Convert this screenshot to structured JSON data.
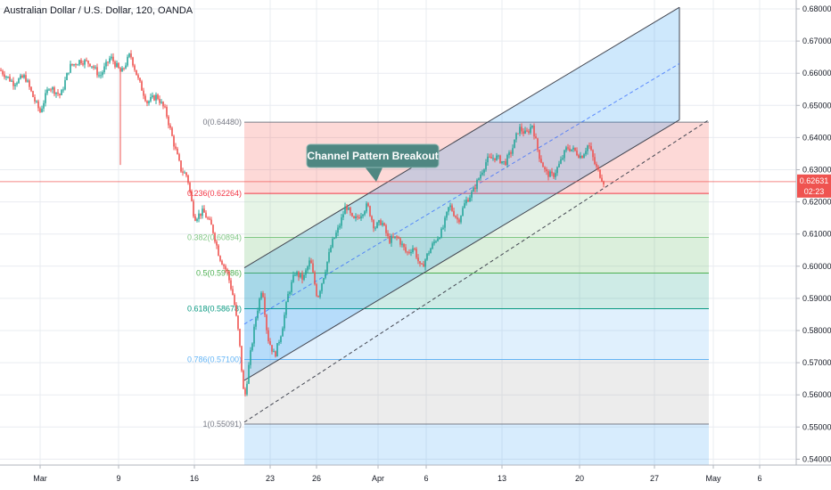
{
  "header": {
    "title": "Australian Dollar / U.S. Dollar, 120, OANDA"
  },
  "annotation": {
    "callout": "Channel Pattern Breakout"
  },
  "price_axis": {
    "labels": [
      "0.68000",
      "0.67000",
      "0.66000",
      "0.65000",
      "0.64000",
      "0.63000",
      "0.62000",
      "0.61000",
      "0.60000",
      "0.59000",
      "0.58000",
      "0.57000",
      "0.56000",
      "0.55000",
      "0.54000"
    ],
    "current_price": "0.62631",
    "countdown": "02:23"
  },
  "time_axis": {
    "labels": [
      "Mar",
      "9",
      "16",
      "23",
      "26",
      "Apr",
      "6",
      "13",
      "20",
      "27",
      "May",
      "6"
    ]
  },
  "colors": {
    "up_candle": "#26a69a",
    "down_candle": "#ef5350",
    "price_line": "#ef5350",
    "channel_fill": "#2196f3",
    "grid": "#e9ecf1"
  },
  "chart_data": {
    "type": "candlestick",
    "title": "Australian Dollar / U.S. Dollar, 120, OANDA",
    "ylim": [
      0.54,
      0.68
    ],
    "x_ticks": [
      "Mar",
      "9",
      "16",
      "23",
      "26",
      "Apr",
      "6",
      "13",
      "20",
      "27",
      "May",
      "6"
    ],
    "current_price": 0.62631,
    "fibonacci": {
      "levels": [
        {
          "ratio": 0,
          "price": 0.6448,
          "label": "0(0.64480)",
          "color": "#787b86",
          "fill": "#f44336"
        },
        {
          "ratio": 0.236,
          "price": 0.62264,
          "label": "0.236(0.62264)",
          "color": "#f23645",
          "fill": "#81c784"
        },
        {
          "ratio": 0.382,
          "price": 0.60894,
          "label": "0.382(0.60894)",
          "color": "#81c784",
          "fill": "#4caf50"
        },
        {
          "ratio": 0.5,
          "price": 0.59786,
          "label": "0.5(0.59786)",
          "color": "#4caf50",
          "fill": "#089981"
        },
        {
          "ratio": 0.618,
          "price": 0.58678,
          "label": "0.618(0.58678)",
          "color": "#089981",
          "fill": "#64b5f6"
        },
        {
          "ratio": 0.786,
          "price": 0.571,
          "label": "0.786(0.57100)",
          "color": "#64b5f6",
          "fill": "#a0a0a0"
        },
        {
          "ratio": 1,
          "price": 0.55091,
          "label": "1(0.55091)",
          "color": "#787b86",
          "fill": null
        }
      ]
    },
    "channel": {
      "upper_line": {
        "x1": 274,
        "p1": 0.5995,
        "x2": 762,
        "p2": 0.6805
      },
      "lower_line": {
        "x1": 274,
        "p1": 0.5645,
        "x2": 762,
        "p2": 0.6455
      },
      "mid_dashed": {
        "x1": 274,
        "p1": 0.582,
        "x2": 762,
        "p2": 0.663
      },
      "outer_dashed": {
        "x1": 274,
        "p1": 0.5515,
        "x2": 795,
        "p2": 0.6455
      }
    },
    "price_path": [
      {
        "x": 0,
        "p": 0.661
      },
      {
        "x": 15,
        "p": 0.657
      },
      {
        "x": 28,
        "p": 0.659
      },
      {
        "x": 38,
        "p": 0.652
      },
      {
        "x": 45,
        "p": 0.648
      },
      {
        "x": 55,
        "p": 0.656
      },
      {
        "x": 68,
        "p": 0.653
      },
      {
        "x": 78,
        "p": 0.662
      },
      {
        "x": 90,
        "p": 0.664
      },
      {
        "x": 102,
        "p": 0.663
      },
      {
        "x": 112,
        "p": 0.659
      },
      {
        "x": 124,
        "p": 0.665
      },
      {
        "x": 136,
        "p": 0.66
      },
      {
        "x": 146,
        "p": 0.666
      },
      {
        "x": 155,
        "p": 0.658
      },
      {
        "x": 165,
        "p": 0.651
      },
      {
        "x": 176,
        "p": 0.653
      },
      {
        "x": 186,
        "p": 0.648
      },
      {
        "x": 195,
        "p": 0.638
      },
      {
        "x": 203,
        "p": 0.63
      },
      {
        "x": 210,
        "p": 0.628
      },
      {
        "x": 218,
        "p": 0.615
      },
      {
        "x": 228,
        "p": 0.617
      },
      {
        "x": 238,
        "p": 0.612
      },
      {
        "x": 246,
        "p": 0.603
      },
      {
        "x": 255,
        "p": 0.598
      },
      {
        "x": 262,
        "p": 0.59
      },
      {
        "x": 268,
        "p": 0.578
      },
      {
        "x": 274,
        "p": 0.558
      },
      {
        "x": 280,
        "p": 0.571
      },
      {
        "x": 287,
        "p": 0.584
      },
      {
        "x": 294,
        "p": 0.594
      },
      {
        "x": 300,
        "p": 0.578
      },
      {
        "x": 308,
        "p": 0.572
      },
      {
        "x": 316,
        "p": 0.58
      },
      {
        "x": 323,
        "p": 0.591
      },
      {
        "x": 331,
        "p": 0.598
      },
      {
        "x": 340,
        "p": 0.596
      },
      {
        "x": 348,
        "p": 0.602
      },
      {
        "x": 356,
        "p": 0.59
      },
      {
        "x": 364,
        "p": 0.598
      },
      {
        "x": 372,
        "p": 0.607
      },
      {
        "x": 380,
        "p": 0.612
      },
      {
        "x": 388,
        "p": 0.619
      },
      {
        "x": 396,
        "p": 0.614
      },
      {
        "x": 404,
        "p": 0.616
      },
      {
        "x": 412,
        "p": 0.619
      },
      {
        "x": 420,
        "p": 0.612
      },
      {
        "x": 428,
        "p": 0.614
      },
      {
        "x": 436,
        "p": 0.608
      },
      {
        "x": 446,
        "p": 0.609
      },
      {
        "x": 456,
        "p": 0.604
      },
      {
        "x": 464,
        "p": 0.606
      },
      {
        "x": 472,
        "p": 0.599
      },
      {
        "x": 480,
        "p": 0.604
      },
      {
        "x": 488,
        "p": 0.608
      },
      {
        "x": 496,
        "p": 0.611
      },
      {
        "x": 504,
        "p": 0.619
      },
      {
        "x": 514,
        "p": 0.614
      },
      {
        "x": 522,
        "p": 0.62
      },
      {
        "x": 530,
        "p": 0.623
      },
      {
        "x": 538,
        "p": 0.628
      },
      {
        "x": 546,
        "p": 0.633
      },
      {
        "x": 556,
        "p": 0.634
      },
      {
        "x": 566,
        "p": 0.632
      },
      {
        "x": 574,
        "p": 0.636
      },
      {
        "x": 582,
        "p": 0.643
      },
      {
        "x": 590,
        "p": 0.641
      },
      {
        "x": 597,
        "p": 0.644
      },
      {
        "x": 604,
        "p": 0.635
      },
      {
        "x": 612,
        "p": 0.629
      },
      {
        "x": 620,
        "p": 0.628
      },
      {
        "x": 628,
        "p": 0.632
      },
      {
        "x": 636,
        "p": 0.637
      },
      {
        "x": 644,
        "p": 0.636
      },
      {
        "x": 652,
        "p": 0.634
      },
      {
        "x": 660,
        "p": 0.638
      },
      {
        "x": 668,
        "p": 0.631
      },
      {
        "x": 677,
        "p": 0.6263
      }
    ]
  }
}
